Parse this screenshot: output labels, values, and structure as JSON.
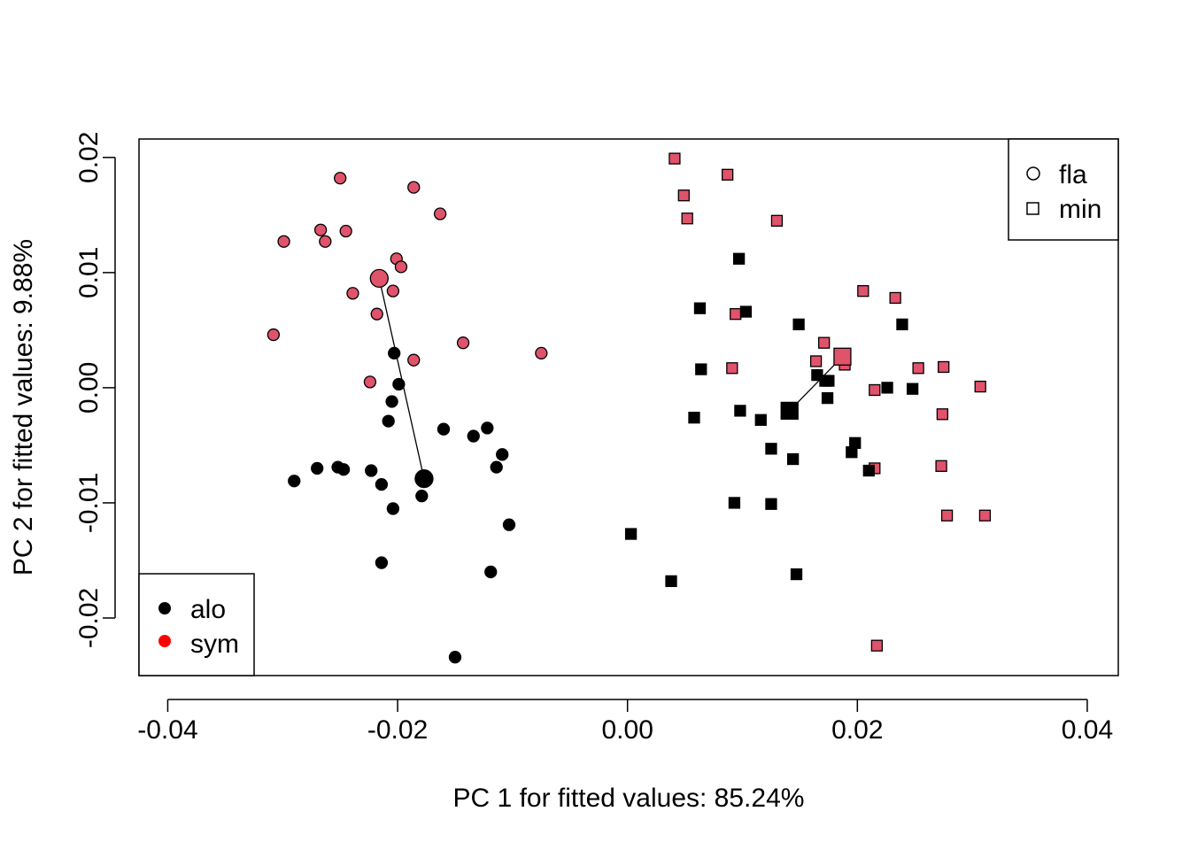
{
  "chart_data": {
    "type": "scatter",
    "title": "",
    "xlabel": "PC 1 for fitted values: 85.24%",
    "ylabel": "PC 2 for fitted values: 9.88%",
    "xlim": [
      -0.0425,
      0.0427
    ],
    "ylim": [
      -0.025,
      0.0216
    ],
    "x_ticks": [
      -0.04,
      -0.02,
      0.0,
      0.02,
      0.04
    ],
    "x_tick_labels": [
      "-0.04",
      "-0.02",
      "0.00",
      "0.02",
      "0.04"
    ],
    "y_ticks": [
      -0.02,
      -0.01,
      0.0,
      0.01,
      0.02
    ],
    "y_tick_labels": [
      "-0.02",
      "-0.01",
      "0.00",
      "0.01",
      "0.02"
    ],
    "grid": false,
    "colors": {
      "alo": "#000000",
      "sym": "#DF536B",
      "sym_legend": "#FF0000"
    },
    "legend_shape": {
      "position": "top-right",
      "entries": [
        {
          "label": "fla",
          "shape": "circle"
        },
        {
          "label": "min",
          "shape": "square"
        }
      ]
    },
    "legend_group": {
      "position": "bottom-left",
      "entries": [
        {
          "label": "alo",
          "color": "#000000"
        },
        {
          "label": "sym",
          "color": "#FF0000"
        }
      ]
    },
    "series": [
      {
        "name": "fla-sym",
        "shape": "circle",
        "group": "sym",
        "points": [
          [
            -0.025,
            0.0182
          ],
          [
            -0.0186,
            0.0174
          ],
          [
            -0.0163,
            0.0151
          ],
          [
            -0.0299,
            0.0127
          ],
          [
            -0.0267,
            0.0137
          ],
          [
            -0.0263,
            0.0127
          ],
          [
            -0.0245,
            0.0136
          ],
          [
            -0.0201,
            0.0112
          ],
          [
            -0.0197,
            0.0105
          ],
          [
            -0.0239,
            0.0082
          ],
          [
            -0.0204,
            0.0084
          ],
          [
            -0.0218,
            0.0064
          ],
          [
            -0.0308,
            0.0046
          ],
          [
            -0.0143,
            0.0039
          ],
          [
            -0.0075,
            0.003
          ],
          [
            -0.0186,
            0.0024
          ],
          [
            -0.0224,
            0.0005
          ]
        ]
      },
      {
        "name": "fla-alo",
        "shape": "circle",
        "group": "alo",
        "points": [
          [
            -0.0203,
            0.003
          ],
          [
            -0.0199,
            0.0003
          ],
          [
            -0.0205,
            -0.0012
          ],
          [
            -0.0208,
            -0.0029
          ],
          [
            -0.016,
            -0.0036
          ],
          [
            -0.0122,
            -0.0035
          ],
          [
            -0.0134,
            -0.0042
          ],
          [
            -0.0109,
            -0.0058
          ],
          [
            -0.0114,
            -0.0069
          ],
          [
            -0.029,
            -0.0081
          ],
          [
            -0.027,
            -0.007
          ],
          [
            -0.0252,
            -0.0069
          ],
          [
            -0.0247,
            -0.0071
          ],
          [
            -0.0223,
            -0.0072
          ],
          [
            -0.0214,
            -0.0084
          ],
          [
            -0.0204,
            -0.0105
          ],
          [
            -0.0179,
            -0.0094
          ],
          [
            -0.0103,
            -0.0119
          ],
          [
            -0.0214,
            -0.0152
          ],
          [
            -0.0119,
            -0.016
          ],
          [
            -0.015,
            -0.0234
          ]
        ]
      },
      {
        "name": "min-sym",
        "shape": "square",
        "group": "sym",
        "points": [
          [
            0.0041,
            0.0199
          ],
          [
            0.0087,
            0.0185
          ],
          [
            0.0049,
            0.0167
          ],
          [
            0.0052,
            0.0147
          ],
          [
            0.013,
            0.0145
          ],
          [
            0.0205,
            0.0084
          ],
          [
            0.0233,
            0.0078
          ],
          [
            0.0094,
            0.0064
          ],
          [
            0.0171,
            0.0039
          ],
          [
            0.0164,
            0.0023
          ],
          [
            0.0091,
            0.0017
          ],
          [
            0.0253,
            0.0017
          ],
          [
            0.0275,
            0.0018
          ],
          [
            0.0189,
            0.002
          ],
          [
            0.0215,
            -0.0002
          ],
          [
            0.0307,
            0.0001
          ],
          [
            0.0274,
            -0.0023
          ],
          [
            0.0215,
            -0.007
          ],
          [
            0.0273,
            -0.0068
          ],
          [
            0.0278,
            -0.0111
          ],
          [
            0.0311,
            -0.0111
          ],
          [
            0.0217,
            -0.0224
          ]
        ]
      },
      {
        "name": "min-alo",
        "shape": "square",
        "group": "alo",
        "points": [
          [
            0.0097,
            0.0112
          ],
          [
            0.0063,
            0.0069
          ],
          [
            0.0103,
            0.0066
          ],
          [
            0.0149,
            0.0055
          ],
          [
            0.0239,
            0.0055
          ],
          [
            0.0064,
            0.0016
          ],
          [
            0.0165,
            0.0011
          ],
          [
            0.0172,
            0.0006
          ],
          [
            0.0175,
            0.0006
          ],
          [
            0.0226,
            0.0
          ],
          [
            0.0248,
            -0.0001
          ],
          [
            0.0174,
            -0.0009
          ],
          [
            0.0098,
            -0.002
          ],
          [
            0.0058,
            -0.0026
          ],
          [
            0.0116,
            -0.0028
          ],
          [
            0.0198,
            -0.0048
          ],
          [
            0.0125,
            -0.0053
          ],
          [
            0.0195,
            -0.0056
          ],
          [
            0.0144,
            -0.0062
          ],
          [
            0.021,
            -0.0072
          ],
          [
            0.0093,
            -0.01
          ],
          [
            0.0125,
            -0.0101
          ],
          [
            0.0003,
            -0.0127
          ],
          [
            0.0147,
            -0.0162
          ],
          [
            0.0038,
            -0.0168
          ]
        ]
      }
    ],
    "means": [
      {
        "name": "fla-sym-mean",
        "shape": "circle",
        "group": "sym",
        "x": -0.0216,
        "y": 0.0095
      },
      {
        "name": "fla-alo-mean",
        "shape": "circle",
        "group": "alo",
        "x": -0.0177,
        "y": -0.0079
      },
      {
        "name": "min-sym-mean",
        "shape": "square",
        "group": "sym",
        "x": 0.0187,
        "y": 0.0027
      },
      {
        "name": "min-alo-mean",
        "shape": "square",
        "group": "alo",
        "x": 0.0141,
        "y": -0.002
      }
    ],
    "connectors": [
      {
        "name": "fla-connector",
        "from": [
          -0.0216,
          0.0095
        ],
        "to": [
          -0.0177,
          -0.0079
        ]
      },
      {
        "name": "min-connector",
        "from": [
          0.0187,
          0.0027
        ],
        "to": [
          0.0141,
          -0.002
        ]
      }
    ]
  }
}
